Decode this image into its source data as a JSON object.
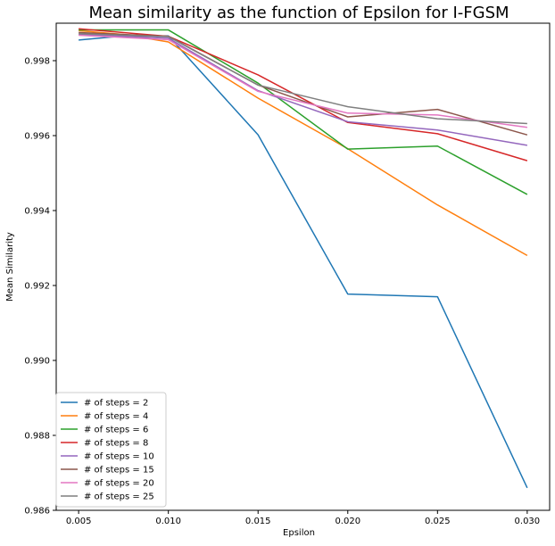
{
  "chart_data": {
    "type": "line",
    "title": "Mean similarity as the function of Epsilon for I-FGSM",
    "xlabel": "Epsilon",
    "ylabel": "Mean Similarity",
    "x": [
      0.005,
      0.0075,
      0.01,
      0.015,
      0.02,
      0.025,
      0.03
    ],
    "xlim": [
      0.00375,
      0.03125
    ],
    "ylim": [
      0.986,
      0.999
    ],
    "xticks": [
      0.005,
      0.01,
      0.015,
      0.02,
      0.025,
      0.03
    ],
    "xtick_labels": [
      "0.005",
      "0.010",
      "0.015",
      "0.020",
      "0.025",
      "0.030"
    ],
    "yticks": [
      0.986,
      0.988,
      0.99,
      0.992,
      0.994,
      0.996,
      0.998
    ],
    "ytick_labels": [
      "0.986",
      "0.988",
      "0.990",
      "0.992",
      "0.994",
      "0.996",
      "0.998"
    ],
    "grid": false,
    "legend_position": "lower-left",
    "series": [
      {
        "name": "# of steps = 2",
        "color": "#1f77b4",
        "values": [
          0.99855,
          0.99866,
          0.99866,
          0.99602,
          0.99177,
          0.9917,
          0.9866
        ]
      },
      {
        "name": "# of steps = 4",
        "color": "#ff7f0e",
        "values": [
          0.9988,
          0.9987,
          0.9985,
          0.997,
          0.99565,
          0.99415,
          0.9928
        ]
      },
      {
        "name": "# of steps = 6",
        "color": "#2ca02c",
        "values": [
          0.99882,
          0.99882,
          0.99882,
          0.9974,
          0.99564,
          0.99572,
          0.99443
        ]
      },
      {
        "name": "# of steps = 8",
        "color": "#d62728",
        "values": [
          0.99885,
          0.99875,
          0.99865,
          0.99762,
          0.99635,
          0.99605,
          0.99533
        ]
      },
      {
        "name": "# of steps = 10",
        "color": "#9467bd",
        "values": [
          0.9987,
          0.99865,
          0.9986,
          0.9972,
          0.99637,
          0.99615,
          0.99574
        ]
      },
      {
        "name": "# of steps = 15",
        "color": "#8c564b",
        "values": [
          0.99875,
          0.9987,
          0.99865,
          0.99735,
          0.9965,
          0.9967,
          0.99602
        ]
      },
      {
        "name": "# of steps = 20",
        "color": "#e377c2",
        "values": [
          0.99868,
          0.99862,
          0.99856,
          0.99718,
          0.9966,
          0.99655,
          0.99622
        ]
      },
      {
        "name": "# of steps = 25",
        "color": "#7f7f7f",
        "values": [
          0.99872,
          0.99868,
          0.99864,
          0.99735,
          0.99677,
          0.99645,
          0.99632
        ]
      }
    ]
  }
}
